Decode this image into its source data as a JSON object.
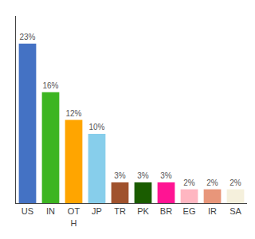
{
  "chart_data": {
    "type": "bar",
    "categories": [
      "US",
      "IN",
      "OT\nH",
      "JP",
      "TR",
      "PK",
      "BR",
      "EG",
      "IR",
      "SA"
    ],
    "values": [
      23,
      16,
      12,
      10,
      3,
      3,
      3,
      2,
      2,
      2
    ],
    "value_labels": [
      "23%",
      "16%",
      "12%",
      "10%",
      "3%",
      "3%",
      "3%",
      "2%",
      "2%",
      "2%"
    ],
    "colors": [
      "#4472c4",
      "#3cb521",
      "#ffa500",
      "#87ceeb",
      "#a0522d",
      "#1a5c00",
      "#ff1493",
      "#ffb6c1",
      "#e8967a",
      "#f5f0dc"
    ],
    "ylim": [
      0,
      27
    ],
    "grid": false,
    "data_labels": true,
    "tick_labels": "x"
  }
}
